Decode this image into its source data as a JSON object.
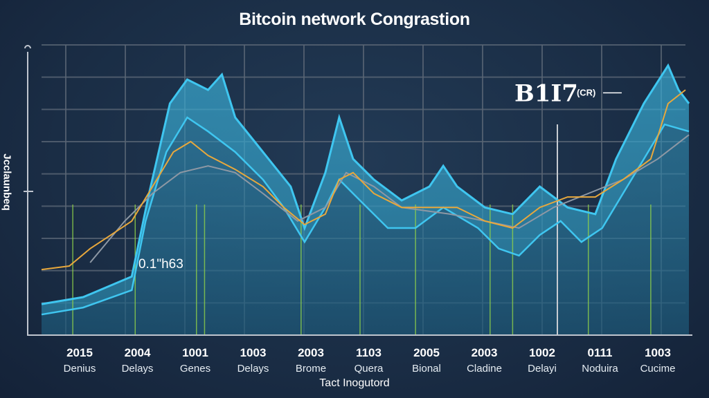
{
  "chart_data": {
    "type": "area",
    "title": "Bitcoin network Congrastion",
    "ylabel": "Jcclaunbeq",
    "xlabel": "Tact Inogutord",
    "categories": [
      "2015",
      "2004",
      "1001",
      "1003",
      "2003",
      "1103",
      "2005",
      "2003",
      "1002",
      "0111",
      "1003"
    ],
    "category_sublabels": [
      "Denius",
      "Delays",
      "Genes",
      "Delays",
      "Brome",
      "Quera",
      "Bional",
      "Cladine",
      "Delayi",
      "Noduira",
      "Cucime"
    ],
    "xlim": [
      -0.9,
      10.6
    ],
    "ylim": [
      0,
      100
    ],
    "grid": true,
    "annotations": [
      {
        "text": "B1I7",
        "sub": "(CR)",
        "x": 8.0,
        "y": 83
      },
      {
        "text": "0.1\"h63",
        "x": 1.1,
        "y": 26
      }
    ],
    "colors": {
      "envelope": "#3fc6f0",
      "area": "#2a7fa6",
      "orange": "#e8a83c",
      "grey": "#8e98a4",
      "marker": "#8ed04a"
    },
    "series": [
      {
        "key": "upper",
        "points": [
          [
            -0.66,
            10.7
          ],
          [
            0.06,
            13.1
          ],
          [
            0.9,
            20.2
          ],
          [
            1.2,
            48.8
          ],
          [
            1.56,
            79.8
          ],
          [
            1.86,
            88.1
          ],
          [
            2.22,
            84.5
          ],
          [
            2.46,
            89.8
          ],
          [
            2.69,
            75
          ],
          [
            3.17,
            63.1
          ],
          [
            3.65,
            51.2
          ],
          [
            3.89,
            36.9
          ],
          [
            4.25,
            56
          ],
          [
            4.49,
            75
          ],
          [
            4.73,
            60.7
          ],
          [
            5.09,
            53.6
          ],
          [
            5.57,
            46.4
          ],
          [
            6.05,
            51.2
          ],
          [
            6.29,
            58.3
          ],
          [
            6.53,
            51.2
          ],
          [
            7.01,
            44
          ],
          [
            7.49,
            41.7
          ],
          [
            7.96,
            51.2
          ],
          [
            8.44,
            44
          ],
          [
            8.92,
            41.7
          ],
          [
            9.28,
            60.7
          ],
          [
            9.76,
            79.8
          ],
          [
            10.18,
            92.9
          ],
          [
            10.36,
            84.5
          ],
          [
            10.54,
            79.8
          ]
        ]
      },
      {
        "key": "lower",
        "points": [
          [
            -0.66,
            7.1
          ],
          [
            0.06,
            9.5
          ],
          [
            0.9,
            15.5
          ],
          [
            1.14,
            39.3
          ],
          [
            1.5,
            63.1
          ],
          [
            1.86,
            75
          ],
          [
            2.22,
            70.2
          ],
          [
            2.69,
            63.1
          ],
          [
            3.17,
            53.6
          ],
          [
            3.53,
            44
          ],
          [
            3.89,
            32.1
          ],
          [
            4.25,
            44
          ],
          [
            4.49,
            53.6
          ],
          [
            4.85,
            46.4
          ],
          [
            5.33,
            36.9
          ],
          [
            5.81,
            36.9
          ],
          [
            6.29,
            44
          ],
          [
            6.89,
            36.9
          ],
          [
            7.25,
            29.8
          ],
          [
            7.6,
            27.4
          ],
          [
            7.96,
            34.5
          ],
          [
            8.32,
            39.3
          ],
          [
            8.68,
            32.1
          ],
          [
            9.04,
            36.9
          ],
          [
            9.4,
            48.8
          ],
          [
            9.76,
            60.7
          ],
          [
            10.12,
            72.6
          ],
          [
            10.54,
            70.2
          ]
        ]
      },
      {
        "key": "orange",
        "points": [
          [
            -0.66,
            22.6
          ],
          [
            -0.18,
            23.8
          ],
          [
            0.18,
            29.8
          ],
          [
            0.54,
            34.5
          ],
          [
            0.9,
            39.3
          ],
          [
            1.26,
            51.2
          ],
          [
            1.62,
            63.1
          ],
          [
            1.92,
            66.7
          ],
          [
            2.22,
            61.9
          ],
          [
            2.69,
            57.1
          ],
          [
            3.17,
            51.2
          ],
          [
            3.53,
            44
          ],
          [
            3.89,
            38.1
          ],
          [
            4.25,
            41.7
          ],
          [
            4.49,
            53.6
          ],
          [
            4.73,
            56
          ],
          [
            5.09,
            48.8
          ],
          [
            5.57,
            44
          ],
          [
            6.05,
            44
          ],
          [
            6.53,
            44
          ],
          [
            7.01,
            39.3
          ],
          [
            7.49,
            36.9
          ],
          [
            7.96,
            44
          ],
          [
            8.44,
            47.6
          ],
          [
            8.92,
            47.6
          ],
          [
            9.4,
            53.6
          ],
          [
            9.88,
            60.7
          ],
          [
            10.18,
            79.8
          ],
          [
            10.48,
            84.5
          ]
        ]
      },
      {
        "key": "grey",
        "points": [
          [
            0.18,
            25
          ],
          [
            0.78,
            39.3
          ],
          [
            1.26,
            48.8
          ],
          [
            1.74,
            56
          ],
          [
            2.22,
            58.3
          ],
          [
            2.69,
            56
          ],
          [
            3.17,
            48.8
          ],
          [
            3.77,
            39.3
          ],
          [
            4.25,
            44
          ],
          [
            4.61,
            56
          ],
          [
            5.09,
            51.2
          ],
          [
            5.57,
            44
          ],
          [
            6.41,
            41.7
          ],
          [
            7.01,
            39.3
          ],
          [
            7.6,
            36.9
          ],
          [
            8.2,
            44
          ],
          [
            8.8,
            48.8
          ],
          [
            9.4,
            53.6
          ],
          [
            10,
            60.7
          ],
          [
            10.54,
            69
          ]
        ]
      }
    ],
    "markers_x": [
      -0.12,
      0.96,
      2.02,
      2.16,
      3.83,
      4.85,
      5.81,
      7.1,
      7.49,
      8.8,
      9.88
    ]
  }
}
